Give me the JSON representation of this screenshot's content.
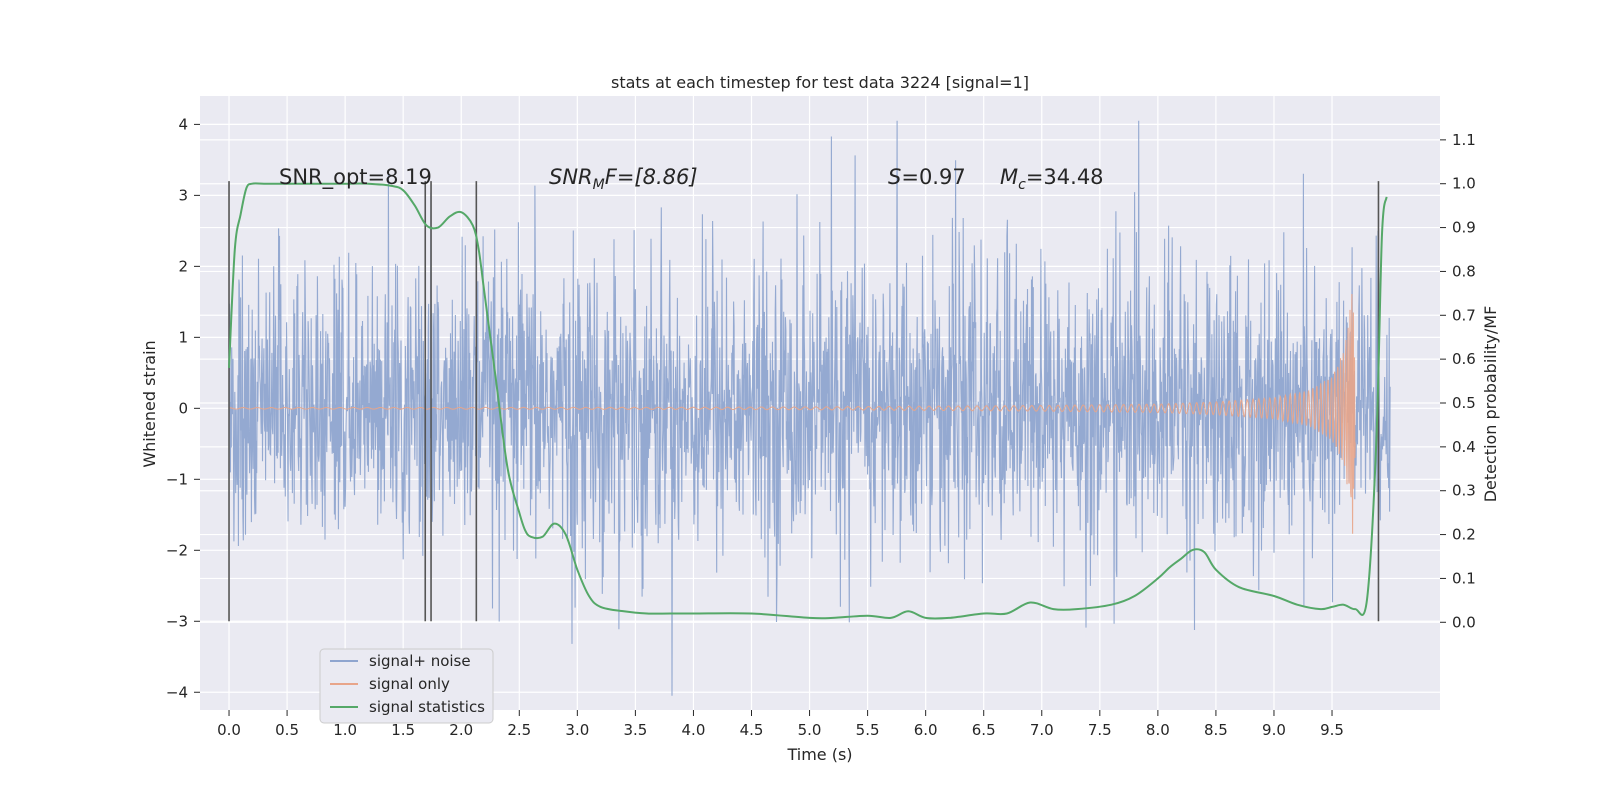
{
  "chart_data": {
    "type": "line",
    "title": "stats at each timestep for test data 3224 [signal=1]",
    "xlabel": "Time (s)",
    "ylabel": "Whitened strain",
    "y2label": "Detection probability/MF",
    "xlim": [
      -0.25,
      10.43
    ],
    "ylim": [
      -4.25,
      4.4
    ],
    "y2lim": [
      -0.2,
      1.2
    ],
    "x_ticks": [
      "0.0",
      "0.5",
      "1.0",
      "1.5",
      "2.0",
      "2.5",
      "3.0",
      "3.5",
      "4.0",
      "4.5",
      "5.0",
      "5.5",
      "6.0",
      "6.5",
      "7.0",
      "7.5",
      "8.0",
      "8.5",
      "9.0",
      "9.5"
    ],
    "y_ticks": [
      "4",
      "3",
      "2",
      "1",
      "0",
      "−1",
      "−2",
      "−3",
      "−4"
    ],
    "y2_ticks": [
      "1.1",
      "1.0",
      "0.9",
      "0.8",
      "0.7",
      "0.6",
      "0.5",
      "0.4",
      "0.3",
      "0.2",
      "0.1",
      "0.0"
    ],
    "grid": true,
    "annotations": {
      "snr_opt": "SNR_opt=8.19",
      "snr_mf_sym": "SNR",
      "snr_mf_sub": "M",
      "snr_mf_tail": "F=[8.86]",
      "s_sym": "S",
      "s_val": "=0.97",
      "mc_sym": "M",
      "mc_sub": "c",
      "mc_val": "=34.48"
    },
    "markers_x": [
      0.0,
      1.69,
      1.74,
      2.13,
      9.9
    ],
    "marker_range": [
      -3.0,
      3.2
    ],
    "legend": {
      "position": "lower-left",
      "entries": [
        "signal+ noise",
        "signal only",
        "signal statistics"
      ]
    },
    "colors": {
      "noise": "#8fa5cf",
      "signal": "#e8a58a",
      "stats": "#55a868",
      "marker": "#555555",
      "background": "#eaeaf2"
    },
    "series": [
      {
        "name": "signal+ noise",
        "axis": "left",
        "x_range": [
          0.0,
          10.0
        ],
        "envelope_abs_typical": 2.0,
        "envelope_abs_max": 4.05
      },
      {
        "name": "signal only",
        "axis": "left",
        "x": [
          0.0,
          4.0,
          5.0,
          6.0,
          7.0,
          8.0,
          8.5,
          9.0,
          9.3,
          9.5,
          9.6,
          9.65,
          9.68,
          9.7
        ],
        "amplitude": [
          0.01,
          0.015,
          0.02,
          0.03,
          0.04,
          0.06,
          0.09,
          0.15,
          0.25,
          0.45,
          0.8,
          1.3,
          1.9,
          0.5
        ]
      },
      {
        "name": "signal statistics",
        "axis": "right",
        "x": [
          0.0,
          0.05,
          0.1,
          0.15,
          0.2,
          0.3,
          0.5,
          0.8,
          1.0,
          1.2,
          1.4,
          1.5,
          1.6,
          1.7,
          1.8,
          1.9,
          2.0,
          2.1,
          2.15,
          2.2,
          2.3,
          2.4,
          2.5,
          2.55,
          2.6,
          2.7,
          2.8,
          2.9,
          3.0,
          3.1,
          3.2,
          3.4,
          3.6,
          3.8,
          4.0,
          4.5,
          5.0,
          5.2,
          5.5,
          5.7,
          5.85,
          6.0,
          6.2,
          6.5,
          6.7,
          6.9,
          7.1,
          7.3,
          7.6,
          7.8,
          8.0,
          8.1,
          8.2,
          8.3,
          8.4,
          8.5,
          8.7,
          9.0,
          9.2,
          9.4,
          9.5,
          9.6,
          9.7,
          9.8,
          9.88,
          9.93,
          9.97
        ],
        "y": [
          0.58,
          0.85,
          0.93,
          0.99,
          1.0,
          1.0,
          1.0,
          1.0,
          1.0,
          1.0,
          0.995,
          0.985,
          0.95,
          0.905,
          0.9,
          0.925,
          0.935,
          0.905,
          0.85,
          0.75,
          0.55,
          0.35,
          0.25,
          0.21,
          0.195,
          0.195,
          0.225,
          0.2,
          0.12,
          0.06,
          0.035,
          0.025,
          0.02,
          0.02,
          0.02,
          0.02,
          0.01,
          0.01,
          0.015,
          0.01,
          0.025,
          0.01,
          0.01,
          0.02,
          0.02,
          0.045,
          0.03,
          0.03,
          0.04,
          0.06,
          0.1,
          0.125,
          0.145,
          0.165,
          0.16,
          0.12,
          0.08,
          0.06,
          0.04,
          0.03,
          0.035,
          0.04,
          0.03,
          0.05,
          0.4,
          0.88,
          0.97
        ]
      }
    ]
  }
}
